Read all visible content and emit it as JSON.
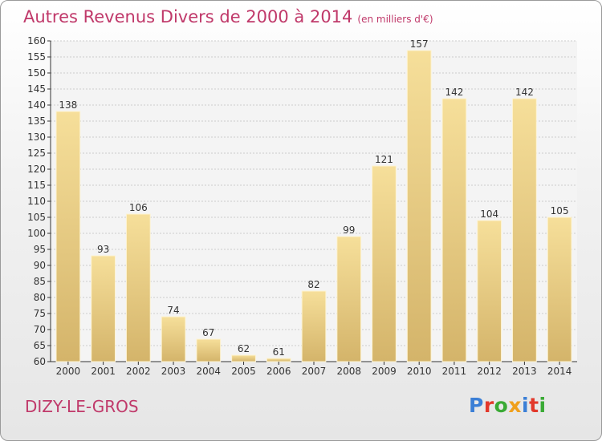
{
  "title": "Autres Revenus Divers de 2000 à 2014",
  "title_unit": "(en milliers d'€)",
  "place_name": "DIZY-LE-GROS",
  "logo_text": "Proxiti",
  "colors": {
    "title": "#c0396a",
    "bar_light": "#f6df9a",
    "bar_dark": "#d4b46a",
    "grid": "#cccccc"
  },
  "chart_data": {
    "type": "bar",
    "categories": [
      "2000",
      "2001",
      "2002",
      "2003",
      "2004",
      "2005",
      "2006",
      "2007",
      "2008",
      "2009",
      "2010",
      "2011",
      "2012",
      "2013",
      "2014"
    ],
    "values": [
      138,
      93,
      106,
      74,
      67,
      62,
      61,
      82,
      99,
      121,
      157,
      142,
      104,
      142,
      105
    ],
    "ylim": [
      60,
      160
    ],
    "ytick_step": 5,
    "grid": true
  }
}
